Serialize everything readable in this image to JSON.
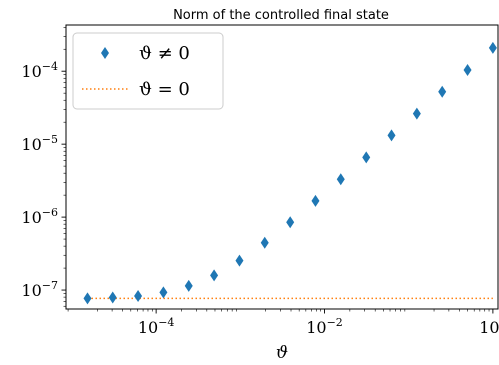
{
  "chart_data": {
    "type": "scatter",
    "title": "Norm of the controlled final state",
    "xlabel": "ϑ",
    "ylabel": "",
    "xscale": "log",
    "yscale": "log",
    "xlim": [
      8.5e-06,
      1.15
    ],
    "ylim": [
      5.5e-08,
      0.00043
    ],
    "grid": false,
    "legend_position": "top-left",
    "x_ticks": [
      {
        "value": 0.0001,
        "base": "10",
        "exp": "−4"
      },
      {
        "value": 0.01,
        "base": "10",
        "exp": "−2"
      },
      {
        "value": 1,
        "base": "10",
        "exp": "0"
      }
    ],
    "y_ticks": [
      {
        "value": 1e-07,
        "base": "10",
        "exp": "−7"
      },
      {
        "value": 1e-06,
        "base": "10",
        "exp": "−6"
      },
      {
        "value": 1e-05,
        "base": "10",
        "exp": "−5"
      },
      {
        "value": 0.0001,
        "base": "10",
        "exp": "−4"
      }
    ],
    "series": [
      {
        "name": "ϑ ≠ 0",
        "marker": "diamond",
        "color": "#1f77b4",
        "x": [
          1.53e-05,
          3.05e-05,
          6.1e-05,
          0.000122,
          0.000244,
          0.000488,
          0.000977,
          0.00195,
          0.00391,
          0.00781,
          0.0156,
          0.0313,
          0.0625,
          0.125,
          0.25,
          0.5,
          1.0
        ],
        "y": [
          7.7e-08,
          7.9e-08,
          8.3e-08,
          9.3e-08,
          1.14e-07,
          1.59e-07,
          2.53e-07,
          4.46e-07,
          8.49e-07,
          1.67e-06,
          3.31e-06,
          6.58e-06,
          1.32e-05,
          2.62e-05,
          5.23e-05,
          0.000104,
          0.000209
        ]
      },
      {
        "name": "ϑ = 0",
        "line_style": "dotted",
        "color": "#ff7f0e",
        "x": [
          1.53e-05,
          1.0
        ],
        "y": [
          7.7e-08,
          7.7e-08
        ]
      }
    ]
  }
}
